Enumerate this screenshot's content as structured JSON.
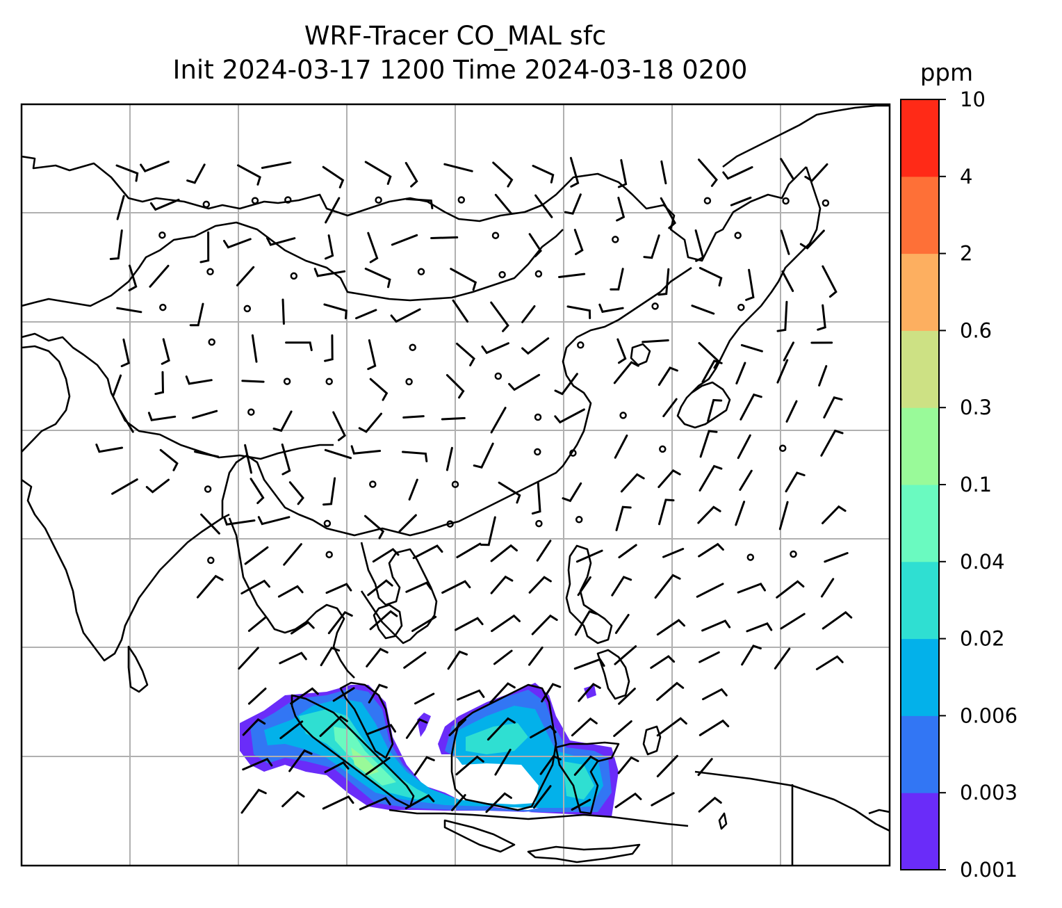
{
  "figure": {
    "title_line1": "WRF-Tracer CO_MAL sfc",
    "title_line2": "Init 2024-03-17 1200 Time 2024-03-18 0200"
  },
  "map": {
    "field": "CO_MAL surface tracer concentration",
    "overlay": "wind barbs",
    "gridlines": true
  },
  "colorbar": {
    "unit": "ppm",
    "levels": [
      "0.001",
      "0.003",
      "0.006",
      "0.02",
      "0.04",
      "0.1",
      "0.3",
      "0.6",
      "2",
      "4",
      "10"
    ],
    "colors": [
      "#6a2cf9",
      "#3276f4",
      "#03b1ea",
      "#2fdfd2",
      "#6afac0",
      "#99fa99",
      "#cde184",
      "#fdaf60",
      "#fe7037",
      "#ff2a17"
    ]
  }
}
